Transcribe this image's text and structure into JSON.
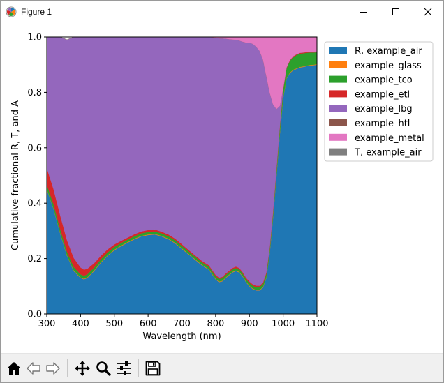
{
  "window": {
    "title": "Figure 1",
    "icons": [
      "matplotlib-logo-icon",
      "minimize-icon",
      "maximize-icon",
      "close-icon"
    ]
  },
  "toolbar": {
    "buttons": [
      {
        "name": "home-button",
        "icon": "home-icon"
      },
      {
        "name": "back-button",
        "icon": "back-arrow-icon"
      },
      {
        "name": "forward-button",
        "icon": "forward-arrow-icon"
      },
      {
        "name": "pan-button",
        "icon": "move-icon"
      },
      {
        "name": "zoom-button",
        "icon": "magnifier-icon"
      },
      {
        "name": "configure-subplots-button",
        "icon": "sliders-icon"
      },
      {
        "name": "save-button",
        "icon": "floppy-disk-icon"
      }
    ]
  },
  "chart_data": {
    "type": "area",
    "stacked": true,
    "title": "",
    "xlabel": "Wavelength (nm)",
    "ylabel": "Cumulative fractional R, T, and A",
    "xlim": [
      300,
      1100
    ],
    "ylim": [
      0.0,
      1.0
    ],
    "x_ticks": [
      "300",
      "400",
      "500",
      "600",
      "700",
      "800",
      "900",
      "1000",
      "1100"
    ],
    "y_ticks": [
      "0.0",
      "0.2",
      "0.4",
      "0.6",
      "0.8",
      "1.0"
    ],
    "grid": false,
    "legend_position": "outside-right",
    "x": [
      300,
      320,
      340,
      360,
      380,
      400,
      410,
      420,
      440,
      460,
      480,
      500,
      520,
      540,
      560,
      580,
      600,
      620,
      640,
      660,
      680,
      700,
      720,
      740,
      760,
      780,
      800,
      810,
      820,
      830,
      840,
      850,
      860,
      870,
      880,
      890,
      900,
      910,
      920,
      930,
      940,
      950,
      960,
      970,
      980,
      990,
      1000,
      1010,
      1020,
      1030,
      1040,
      1050,
      1060,
      1070,
      1080,
      1090,
      1100
    ],
    "series": [
      {
        "name": "R, example_air",
        "color": "#1f77b4",
        "values": [
          0.45,
          0.38,
          0.29,
          0.21,
          0.155,
          0.13,
          0.125,
          0.13,
          0.155,
          0.185,
          0.21,
          0.23,
          0.245,
          0.258,
          0.27,
          0.28,
          0.285,
          0.287,
          0.28,
          0.27,
          0.255,
          0.235,
          0.215,
          0.195,
          0.175,
          0.16,
          0.125,
          0.115,
          0.118,
          0.13,
          0.14,
          0.15,
          0.155,
          0.15,
          0.135,
          0.115,
          0.1,
          0.09,
          0.085,
          0.085,
          0.095,
          0.13,
          0.22,
          0.35,
          0.5,
          0.65,
          0.78,
          0.85,
          0.87,
          0.88,
          0.885,
          0.89,
          0.892,
          0.895,
          0.897,
          0.898,
          0.9
        ]
      },
      {
        "name": "example_glass",
        "color": "#ff7f0e",
        "values": [
          0.002,
          0.002,
          0.002,
          0.002,
          0.002,
          0.002,
          0.002,
          0.002,
          0.002,
          0.002,
          0.002,
          0.002,
          0.002,
          0.002,
          0.002,
          0.002,
          0.002,
          0.002,
          0.002,
          0.002,
          0.002,
          0.002,
          0.002,
          0.002,
          0.002,
          0.002,
          0.002,
          0.002,
          0.002,
          0.002,
          0.002,
          0.002,
          0.002,
          0.002,
          0.002,
          0.002,
          0.002,
          0.002,
          0.002,
          0.002,
          0.002,
          0.002,
          0.002,
          0.002,
          0.002,
          0.002,
          0.002,
          0.002,
          0.002,
          0.002,
          0.002,
          0.002,
          0.002,
          0.002,
          0.002,
          0.002,
          0.002
        ]
      },
      {
        "name": "example_tco",
        "color": "#2ca02c",
        "values": [
          0.015,
          0.014,
          0.013,
          0.012,
          0.012,
          0.011,
          0.011,
          0.011,
          0.01,
          0.01,
          0.01,
          0.01,
          0.009,
          0.009,
          0.009,
          0.009,
          0.009,
          0.009,
          0.009,
          0.009,
          0.009,
          0.009,
          0.009,
          0.009,
          0.009,
          0.009,
          0.009,
          0.009,
          0.009,
          0.009,
          0.009,
          0.009,
          0.009,
          0.009,
          0.009,
          0.009,
          0.01,
          0.01,
          0.01,
          0.01,
          0.011,
          0.012,
          0.013,
          0.015,
          0.018,
          0.022,
          0.028,
          0.035,
          0.042,
          0.046,
          0.048,
          0.048,
          0.047,
          0.046,
          0.045,
          0.044,
          0.043
        ]
      },
      {
        "name": "example_etl",
        "color": "#d62728",
        "values": [
          0.06,
          0.055,
          0.05,
          0.042,
          0.033,
          0.025,
          0.022,
          0.02,
          0.016,
          0.013,
          0.011,
          0.009,
          0.008,
          0.007,
          0.007,
          0.007,
          0.007,
          0.007,
          0.006,
          0.006,
          0.006,
          0.006,
          0.005,
          0.005,
          0.005,
          0.005,
          0.005,
          0.005,
          0.005,
          0.005,
          0.005,
          0.005,
          0.005,
          0.005,
          0.005,
          0.005,
          0.005,
          0.005,
          0.005,
          0.005,
          0.005,
          0.005,
          0.004,
          0.004,
          0.004,
          0.003,
          0.003,
          0.003,
          0.003,
          0.003,
          0.003,
          0.003,
          0.003,
          0.003,
          0.003,
          0.003,
          0.003
        ]
      },
      {
        "name": "example_lbg",
        "color": "#9467bd",
        "values": [
          0.473,
          0.549,
          0.645,
          0.724,
          0.798,
          0.832,
          0.84,
          0.837,
          0.817,
          0.79,
          0.767,
          0.749,
          0.736,
          0.724,
          0.712,
          0.702,
          0.697,
          0.695,
          0.703,
          0.713,
          0.728,
          0.748,
          0.769,
          0.789,
          0.809,
          0.824,
          0.857,
          0.864,
          0.861,
          0.848,
          0.836,
          0.825,
          0.819,
          0.821,
          0.832,
          0.849,
          0.863,
          0.868,
          0.863,
          0.848,
          0.807,
          0.711,
          0.561,
          0.386,
          0.216,
          0.074,
          0.003,
          0.0,
          0.0,
          0.0,
          0.0,
          0.0,
          0.0,
          0.0,
          0.0,
          0.0,
          0.0
        ]
      },
      {
        "name": "example_htl",
        "color": "#8c564b",
        "values": [
          0.0,
          0.0,
          0.0,
          0.0,
          0.0,
          0.0,
          0.0,
          0.0,
          0.0,
          0.0,
          0.0,
          0.0,
          0.0,
          0.0,
          0.0,
          0.0,
          0.0,
          0.0,
          0.0,
          0.0,
          0.0,
          0.0,
          0.0,
          0.0,
          0.0,
          0.0,
          0.0,
          0.0,
          0.0,
          0.0,
          0.0,
          0.0,
          0.0,
          0.0,
          0.0,
          0.0,
          0.0,
          0.0,
          0.0,
          0.0,
          0.0,
          0.0,
          0.0,
          0.0,
          0.0,
          0.0,
          0.0,
          0.0,
          0.0,
          0.0,
          0.0,
          0.0,
          0.0,
          0.0,
          0.0,
          0.0,
          0.0
        ]
      },
      {
        "name": "example_metal",
        "color": "#e377c2",
        "values": [
          0.0,
          0.0,
          0.0,
          0.0,
          0.0,
          0.0,
          0.0,
          0.0,
          0.0,
          0.0,
          0.0,
          0.0,
          0.0,
          0.0,
          0.0,
          0.0,
          0.0,
          0.0,
          0.0,
          0.0,
          0.0,
          0.0,
          0.0,
          0.0,
          0.0,
          0.0,
          0.002,
          0.005,
          0.005,
          0.006,
          0.008,
          0.009,
          0.01,
          0.013,
          0.017,
          0.02,
          0.02,
          0.025,
          0.035,
          0.05,
          0.08,
          0.14,
          0.2,
          0.245,
          0.26,
          0.25,
          0.186,
          0.11,
          0.083,
          0.071,
          0.062,
          0.057,
          0.056,
          0.054,
          0.053,
          0.053,
          0.052
        ]
      },
      {
        "name": "T, example_air",
        "color": "#7f7f7f",
        "values": [
          0.0,
          0.0,
          0.0,
          0.0,
          0.0,
          0.0,
          0.0,
          0.0,
          0.0,
          0.0,
          0.0,
          0.0,
          0.0,
          0.0,
          0.0,
          0.0,
          0.0,
          0.0,
          0.0,
          0.0,
          0.0,
          0.0,
          0.0,
          0.0,
          0.0,
          0.0,
          0.0,
          0.0,
          0.0,
          0.0,
          0.0,
          0.0,
          0.0,
          0.0,
          0.0,
          0.0,
          0.0,
          0.0,
          0.0,
          0.0,
          0.0,
          0.0,
          0.0,
          0.0,
          0.0,
          0.0,
          0.0,
          0.0,
          0.0,
          0.0,
          0.0,
          0.0,
          0.0,
          0.0,
          0.0,
          0.0,
          0.0
        ]
      }
    ]
  }
}
